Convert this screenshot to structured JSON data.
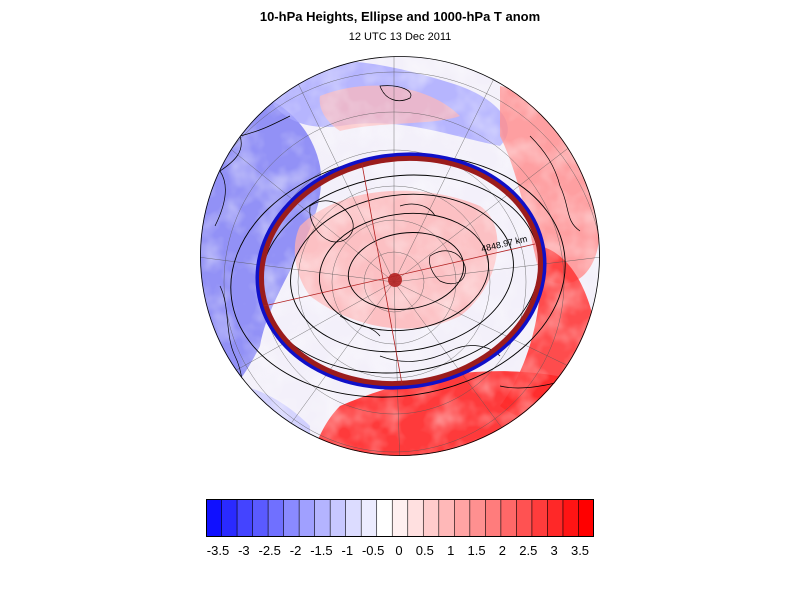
{
  "figure": {
    "title": "10-hPa Heights, Ellipse and 1000-hPa T anom",
    "subtitle": "12 UTC 13 Dec 2011",
    "ellipse_annotation": "4848.97 km"
  },
  "colors": {
    "ellipse_fill": "#9b1c1c",
    "ellipse_outline": "#1010c8",
    "centroid": "#b22222",
    "contour": "#000000",
    "coast": "#000000",
    "grid": "#555555"
  },
  "colorbar": {
    "min": -3.5,
    "max": 3.5,
    "tick_labels": [
      "-3.5",
      "-3",
      "-2.5",
      "-2",
      "-1.5",
      "-1",
      "-0.5",
      "0",
      "0.5",
      "1",
      "1.5",
      "2",
      "2.5",
      "3",
      "3.5"
    ],
    "colors": [
      "#1010ff",
      "#2a2aff",
      "#4444ff",
      "#5a5aff",
      "#7070ff",
      "#8a8aff",
      "#a0a0ff",
      "#b4b4ff",
      "#c8c8ff",
      "#dcdcff",
      "#ececff",
      "#ffffff",
      "#fff0f0",
      "#ffe0e0",
      "#ffcccc",
      "#ffb8b8",
      "#ffa4a4",
      "#ff9090",
      "#ff7c7c",
      "#ff6868",
      "#ff5252",
      "#ff3c3c",
      "#ff2828",
      "#ff1414",
      "#ff0000"
    ]
  }
}
